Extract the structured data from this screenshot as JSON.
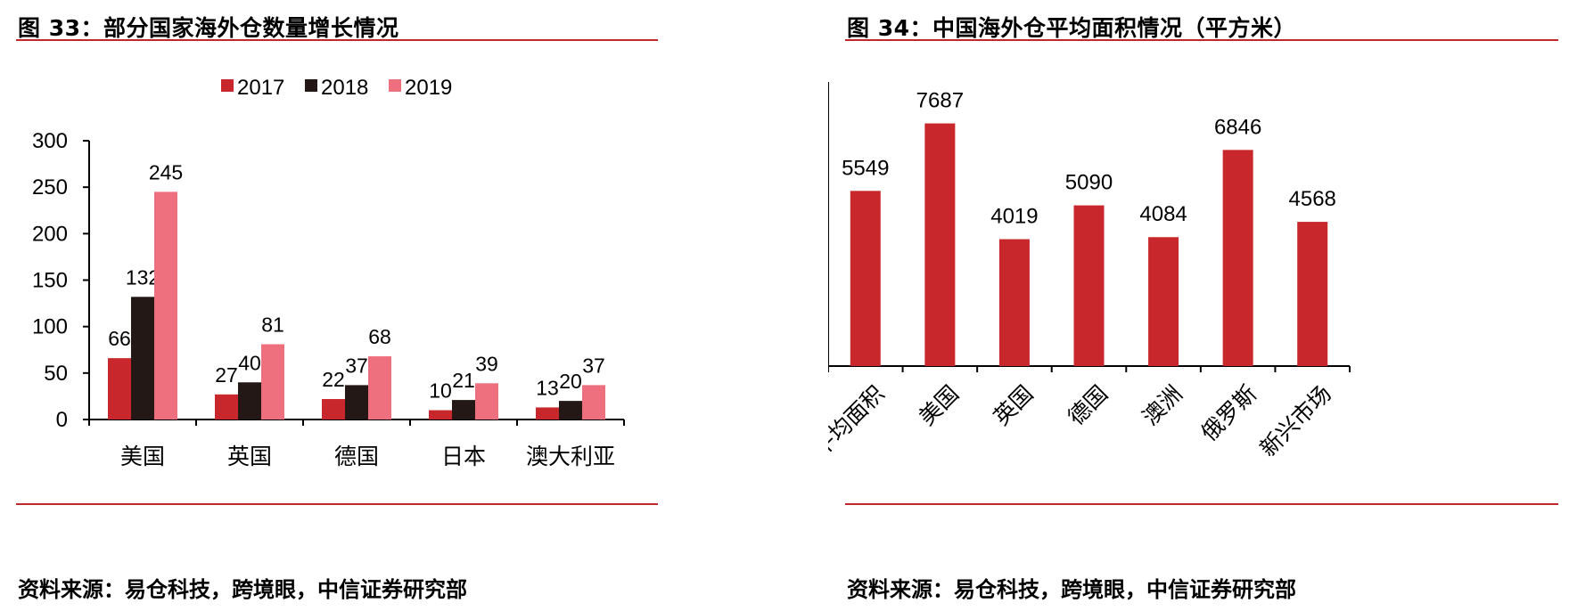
{
  "figures": [
    {
      "title": "图 33：部分国家海外仓数量增长情况",
      "source": "资料来源：易仓科技，跨境眼，中信证券研究部"
    },
    {
      "title": "图 34：中国海外仓平均面积情况（平方米）",
      "source": "资料来源：易仓科技，跨境眼，中信证券研究部"
    }
  ],
  "chart_data": [
    {
      "type": "bar",
      "title": "图 33：部分国家海外仓数量增长情况",
      "categories": [
        "美国",
        "英国",
        "德国",
        "日本",
        "澳大利亚"
      ],
      "series": [
        {
          "name": "2017",
          "color": "#c8272b",
          "values": [
            66,
            27,
            22,
            10,
            13
          ]
        },
        {
          "name": "2018",
          "color": "#231815",
          "values": [
            132,
            40,
            37,
            21,
            20
          ]
        },
        {
          "name": "2019",
          "color": "#ee6f7d",
          "values": [
            245,
            81,
            68,
            39,
            37
          ]
        }
      ],
      "ylim": [
        0,
        300
      ],
      "yticks": [
        0,
        50,
        100,
        150,
        200,
        250,
        300
      ],
      "legend": "top-center",
      "grid": false
    },
    {
      "type": "bar",
      "title": "图 34：中国海外仓平均面积情况（平方米）",
      "categories": [
        "平均面积",
        "美国",
        "英国",
        "德国",
        "澳洲",
        "俄罗斯",
        "新兴市场"
      ],
      "values": [
        5549,
        7687,
        4019,
        5090,
        4084,
        6846,
        4568
      ],
      "color": "#c8272b",
      "ylim": [
        0,
        9000
      ],
      "yticks": [
        0,
        1000,
        2000,
        3000,
        4000,
        5000,
        6000,
        7000,
        8000,
        9000
      ],
      "legend": "none",
      "grid": false
    }
  ]
}
